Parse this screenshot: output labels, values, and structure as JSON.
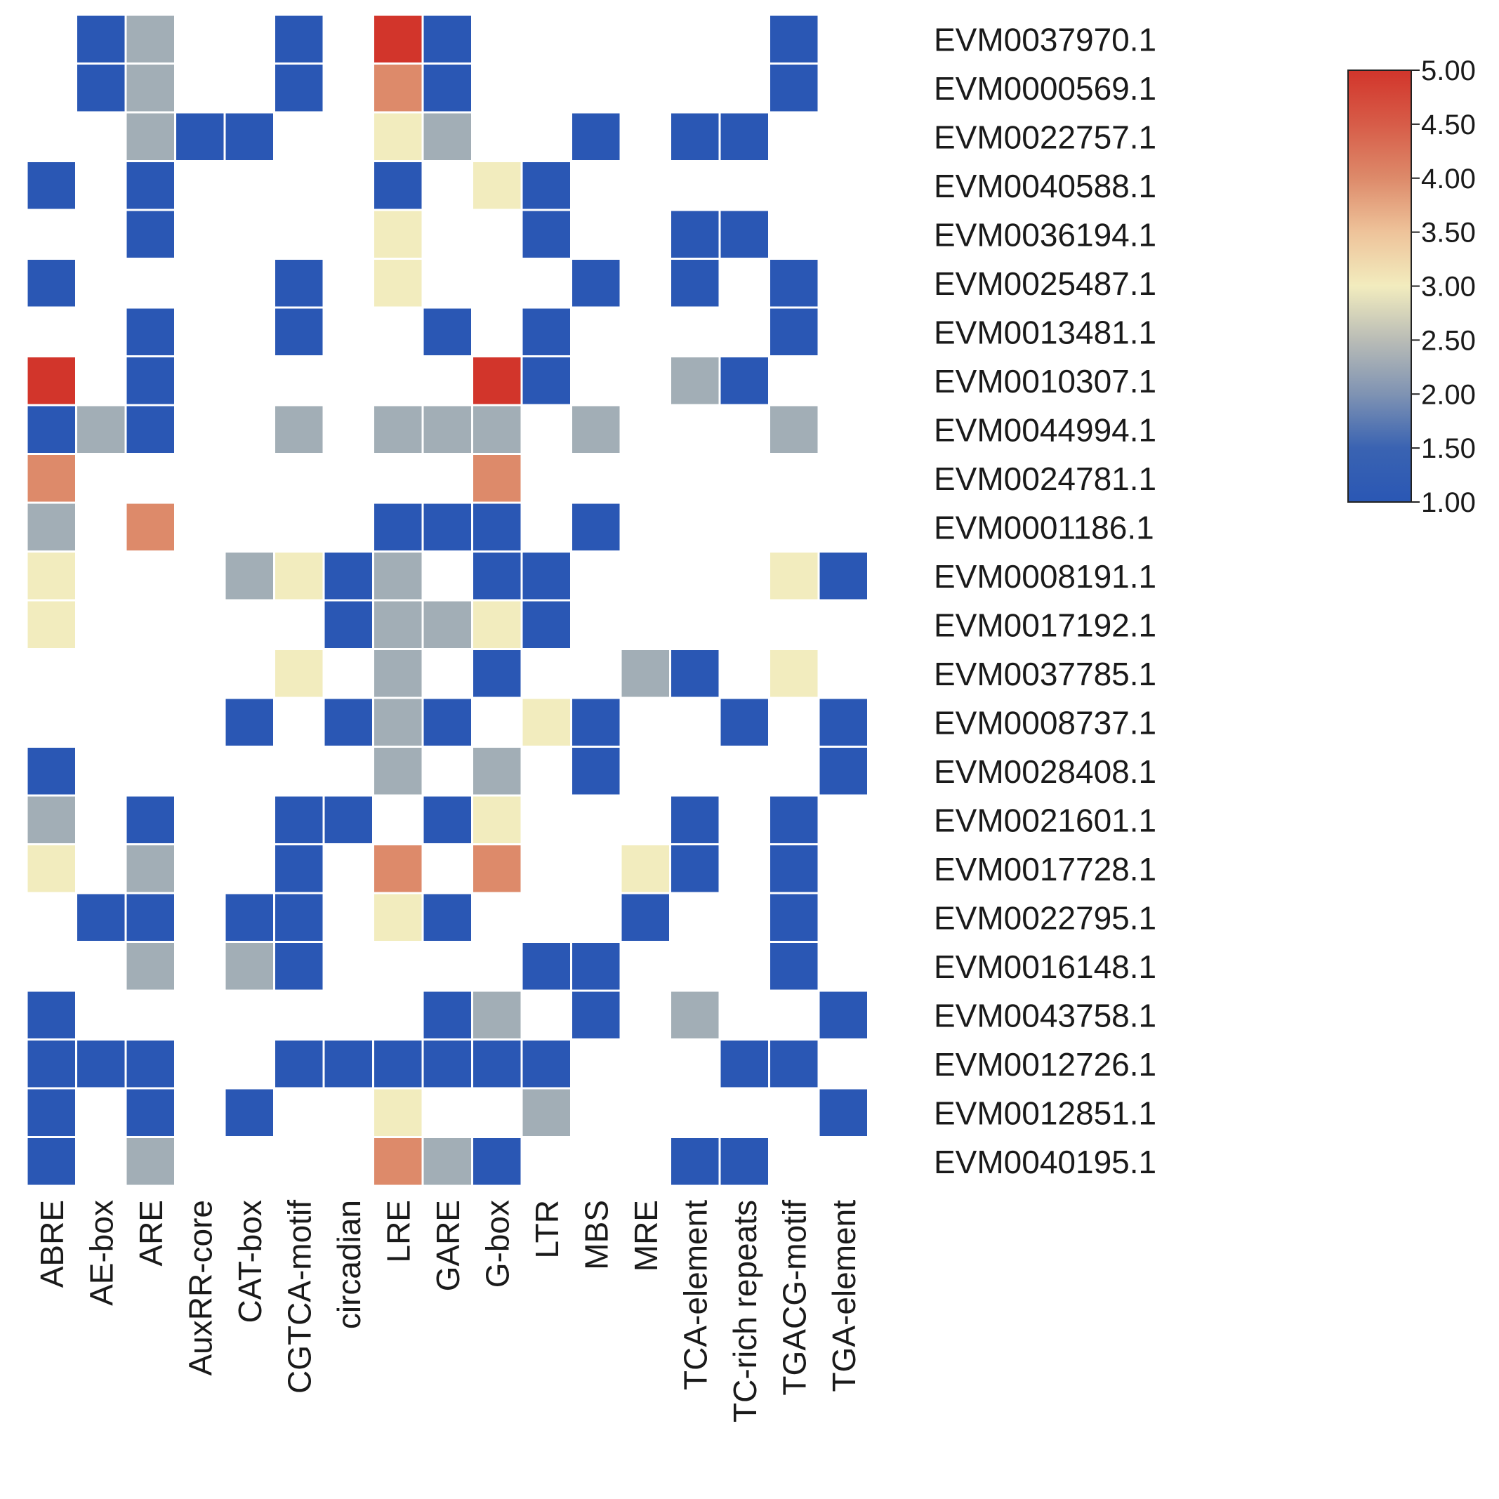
{
  "chart_data": {
    "type": "heatmap",
    "title": "",
    "xlabel": "",
    "ylabel": "",
    "columns": [
      "ABRE",
      "AE-box",
      "ARE",
      "AuxRR-core",
      "CAT-box",
      "CGTCA-motif",
      "circadian",
      "LRE",
      "GARE",
      "G-box",
      "LTR",
      "MBS",
      "MRE",
      "TCA-element",
      "TC-rich repeats",
      "TGACG-motif",
      "TGA-element"
    ],
    "rows": [
      "EVM0037970.1",
      "EVM0000569.1",
      "EVM0022757.1",
      "EVM0040588.1",
      "EVM0036194.1",
      "EVM0025487.1",
      "EVM0013481.1",
      "EVM0010307.1",
      "EVM0044994.1",
      "EVM0024781.1",
      "EVM0001186.1",
      "EVM0008191.1",
      "EVM0017192.1",
      "EVM0037785.1",
      "EVM0008737.1",
      "EVM0028408.1",
      "EVM0021601.1",
      "EVM0017728.1",
      "EVM0022795.1",
      "EVM0016148.1",
      "EVM0043758.1",
      "EVM0012726.1",
      "EVM0012851.1",
      "EVM0040195.1"
    ],
    "values": [
      [
        null,
        1,
        2,
        null,
        null,
        1,
        null,
        5,
        1,
        null,
        null,
        null,
        null,
        null,
        null,
        1,
        null
      ],
      [
        null,
        1,
        2,
        null,
        null,
        1,
        null,
        4,
        1,
        null,
        null,
        null,
        null,
        null,
        null,
        1,
        null
      ],
      [
        null,
        null,
        2,
        1,
        1,
        null,
        null,
        3,
        2,
        null,
        null,
        1,
        null,
        1,
        1,
        null,
        null
      ],
      [
        1,
        null,
        1,
        null,
        null,
        null,
        null,
        1,
        null,
        3,
        1,
        null,
        null,
        null,
        null,
        null,
        null
      ],
      [
        null,
        null,
        1,
        null,
        null,
        null,
        null,
        3,
        null,
        null,
        1,
        null,
        null,
        1,
        1,
        null,
        null
      ],
      [
        1,
        null,
        null,
        null,
        null,
        1,
        null,
        3,
        null,
        null,
        null,
        1,
        null,
        1,
        null,
        1,
        null
      ],
      [
        null,
        null,
        1,
        null,
        null,
        1,
        null,
        null,
        1,
        null,
        1,
        null,
        null,
        null,
        null,
        1,
        null
      ],
      [
        5,
        null,
        1,
        null,
        null,
        null,
        null,
        null,
        null,
        5,
        1,
        null,
        null,
        2,
        1,
        null,
        null
      ],
      [
        1,
        2,
        1,
        null,
        null,
        2,
        null,
        2,
        2,
        2,
        null,
        2,
        null,
        null,
        null,
        2,
        null
      ],
      [
        4,
        null,
        null,
        null,
        null,
        null,
        null,
        null,
        null,
        4,
        null,
        null,
        null,
        null,
        null,
        null,
        null
      ],
      [
        2,
        null,
        4,
        null,
        null,
        null,
        null,
        1,
        1,
        1,
        null,
        1,
        null,
        null,
        null,
        null,
        null
      ],
      [
        3,
        null,
        null,
        null,
        2,
        3,
        1,
        2,
        null,
        1,
        1,
        null,
        null,
        null,
        null,
        3,
        1
      ],
      [
        3,
        null,
        null,
        null,
        null,
        null,
        1,
        2,
        2,
        3,
        1,
        null,
        null,
        null,
        null,
        null,
        null
      ],
      [
        null,
        null,
        null,
        null,
        null,
        3,
        null,
        2,
        null,
        1,
        null,
        null,
        2,
        1,
        null,
        3,
        null
      ],
      [
        null,
        null,
        null,
        null,
        1,
        null,
        1,
        2,
        1,
        null,
        3,
        1,
        null,
        null,
        1,
        null,
        1
      ],
      [
        1,
        null,
        null,
        null,
        null,
        null,
        null,
        2,
        null,
        2,
        null,
        1,
        null,
        null,
        null,
        null,
        1
      ],
      [
        2,
        null,
        1,
        null,
        null,
        1,
        1,
        null,
        1,
        3,
        null,
        null,
        null,
        1,
        null,
        1,
        null
      ],
      [
        3,
        null,
        2,
        null,
        null,
        1,
        null,
        4,
        null,
        4,
        null,
        null,
        3,
        1,
        null,
        1,
        null
      ],
      [
        null,
        1,
        1,
        null,
        1,
        1,
        null,
        3,
        1,
        null,
        null,
        null,
        1,
        null,
        null,
        1,
        null
      ],
      [
        null,
        null,
        2,
        null,
        2,
        1,
        null,
        null,
        null,
        null,
        1,
        1,
        null,
        null,
        null,
        1,
        null
      ],
      [
        1,
        null,
        null,
        null,
        null,
        null,
        null,
        null,
        1,
        2,
        null,
        1,
        null,
        2,
        null,
        null,
        1
      ],
      [
        1,
        1,
        1,
        null,
        null,
        1,
        1,
        1,
        1,
        1,
        1,
        null,
        null,
        null,
        1,
        1,
        null
      ],
      [
        1,
        null,
        1,
        null,
        1,
        null,
        null,
        3,
        null,
        null,
        2,
        null,
        null,
        null,
        null,
        null,
        1
      ],
      [
        1,
        null,
        2,
        null,
        null,
        null,
        null,
        4,
        2,
        1,
        null,
        null,
        null,
        1,
        1,
        null,
        null
      ]
    ],
    "colorbar": {
      "min": 1.0,
      "max": 5.0,
      "ticks": [
        "5.00",
        "4.50",
        "4.00",
        "3.50",
        "3.00",
        "2.50",
        "2.00",
        "1.50",
        "1.00"
      ],
      "colors": [
        "#2a57b4",
        "#5a7ab0",
        "#a2aeb6",
        "#f2ecbe",
        "#dd8a6a",
        "#d2352b"
      ]
    },
    "colormap": {
      "1": "#2a57b4",
      "2": "#a2aeb6",
      "3": "#f2ecbe",
      "4": "#dd8a6a",
      "5": "#d2352b"
    },
    "grid": false,
    "legend_position": "right"
  }
}
